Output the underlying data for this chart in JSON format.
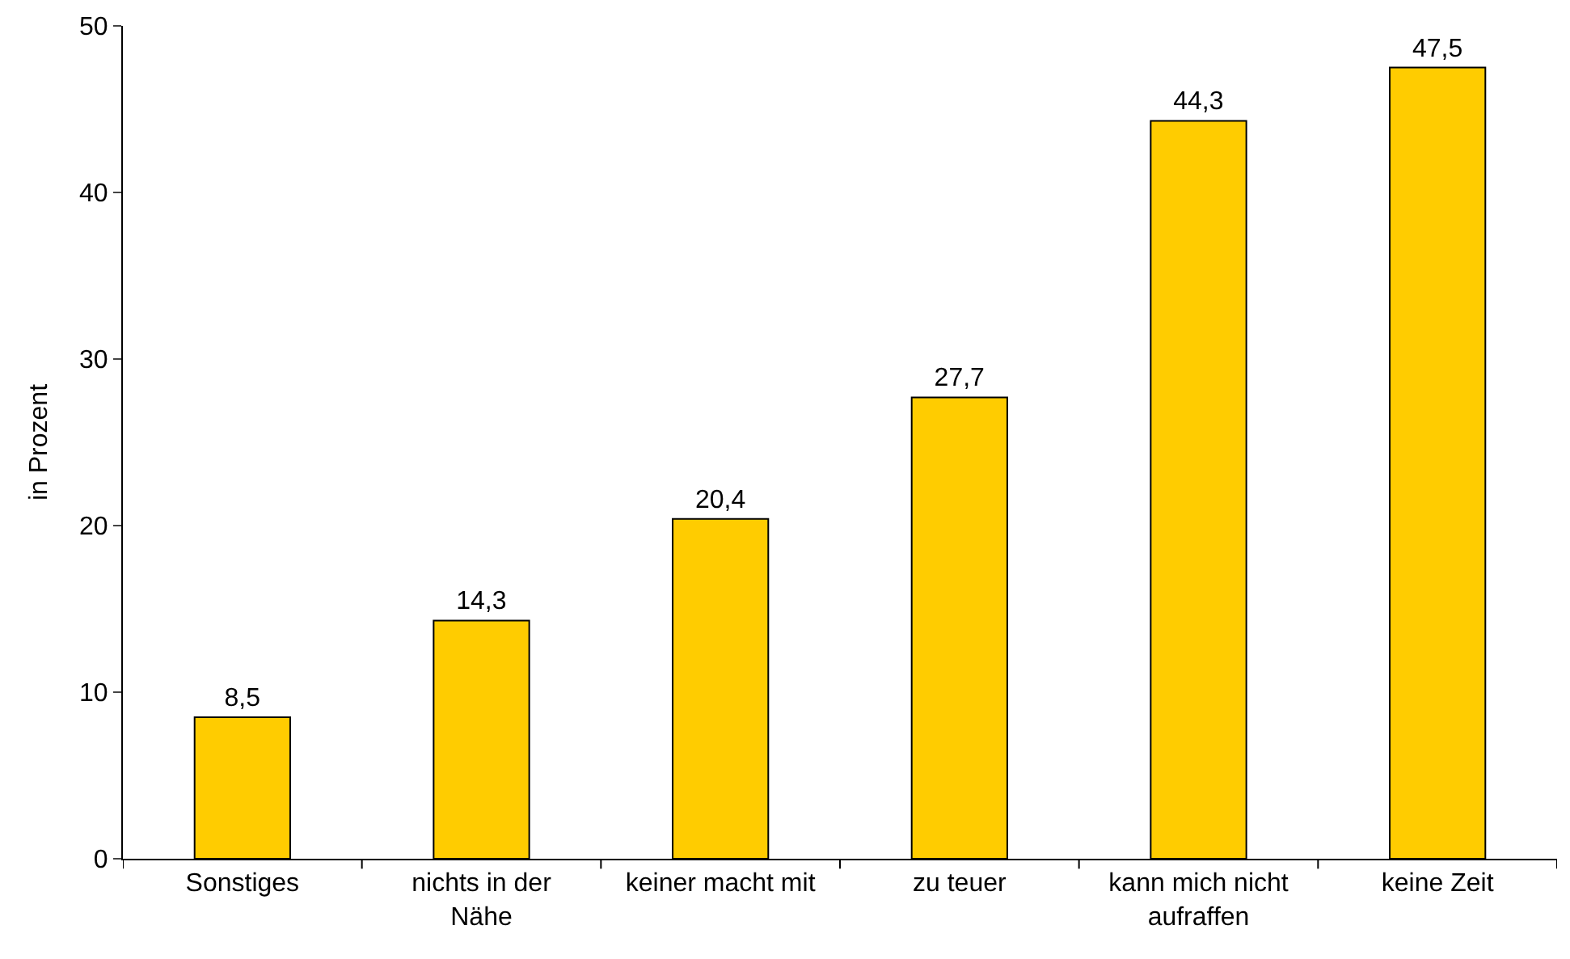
{
  "chart_data": {
    "type": "bar",
    "ylabel": "in Prozent",
    "categories": [
      "Sonstiges",
      "nichts in der Nähe",
      "keiner macht mit",
      "zu teuer",
      "kann mich nicht aufraffen",
      "keine Zeit"
    ],
    "values": [
      8.5,
      14.3,
      20.4,
      27.7,
      44.3,
      47.5
    ],
    "value_labels": [
      "8,5",
      "14,3",
      "20,4",
      "27,7",
      "44,3",
      "47,5"
    ],
    "color": "#ffcc00",
    "ylim": [
      0,
      50
    ],
    "yticks": [
      0,
      10,
      20,
      30,
      40,
      50
    ]
  }
}
